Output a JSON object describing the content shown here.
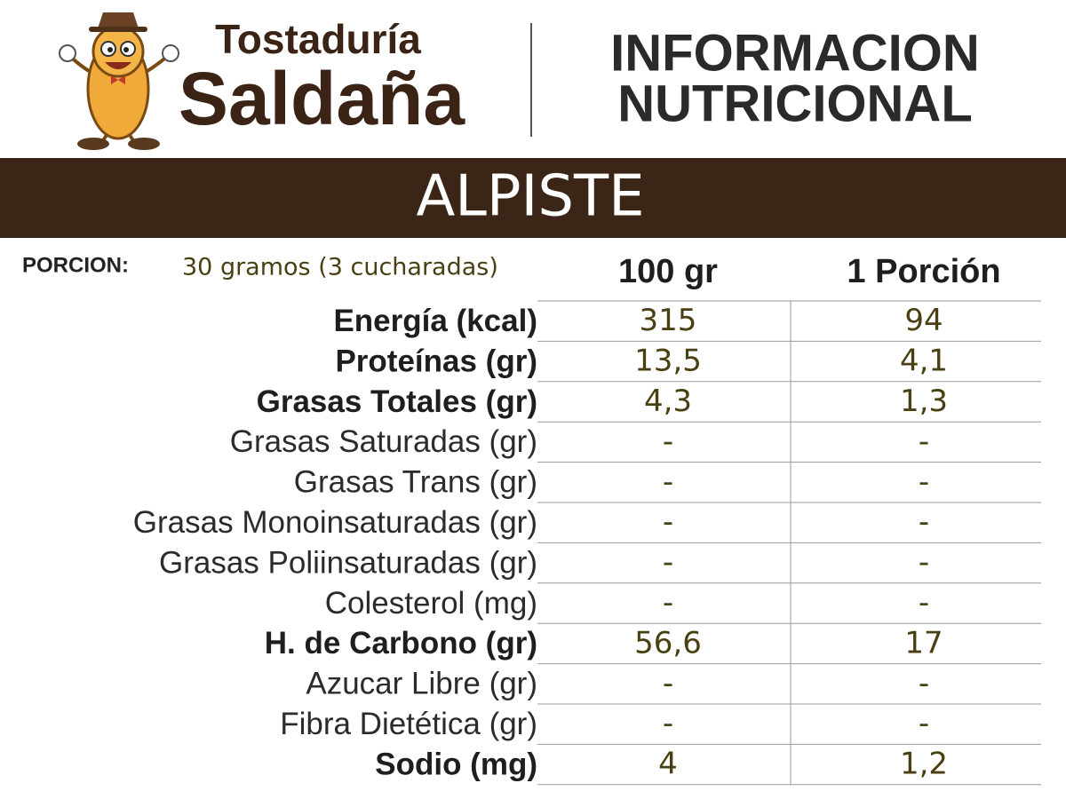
{
  "brand": {
    "line1": "Tostaduría",
    "line2": "Saldaña"
  },
  "header": {
    "title_line1": "INFORMACION",
    "title_line2": "NUTRICIONAL"
  },
  "product": "ALPISTE",
  "portion": {
    "label": "PORCION:",
    "value": "30 gramos (3 cucharadas)"
  },
  "table": {
    "columns": [
      "100 gr",
      "1 Porción"
    ],
    "rows": [
      {
        "label": "Energía (kcal)",
        "per_100g": "315",
        "per_portion": "94",
        "bold": true
      },
      {
        "label": "Proteínas (gr)",
        "per_100g": "13,5",
        "per_portion": "4,1",
        "bold": true
      },
      {
        "label": "Grasas Totales (gr)",
        "per_100g": "4,3",
        "per_portion": "1,3",
        "bold": true
      },
      {
        "label": "Grasas Saturadas (gr)",
        "per_100g": "-",
        "per_portion": "-",
        "bold": false
      },
      {
        "label": "Grasas Trans (gr)",
        "per_100g": "-",
        "per_portion": "-",
        "bold": false
      },
      {
        "label": "Grasas Monoinsaturadas (gr)",
        "per_100g": "-",
        "per_portion": "-",
        "bold": false
      },
      {
        "label": "Grasas Poliinsaturadas (gr)",
        "per_100g": "-",
        "per_portion": "-",
        "bold": false
      },
      {
        "label": "Colesterol (mg)",
        "per_100g": "-",
        "per_portion": "-",
        "bold": false
      },
      {
        "label": "H. de Carbono (gr)",
        "per_100g": "56,6",
        "per_portion": "17",
        "bold": true
      },
      {
        "label": "Azucar Libre (gr)",
        "per_100g": "-",
        "per_portion": "-",
        "bold": false
      },
      {
        "label": "Fibra Dietética (gr)",
        "per_100g": "-",
        "per_portion": "-",
        "bold": false
      },
      {
        "label": "Sodio (mg)",
        "per_100g": "4",
        "per_portion": "1,2",
        "bold": true
      }
    ]
  }
}
